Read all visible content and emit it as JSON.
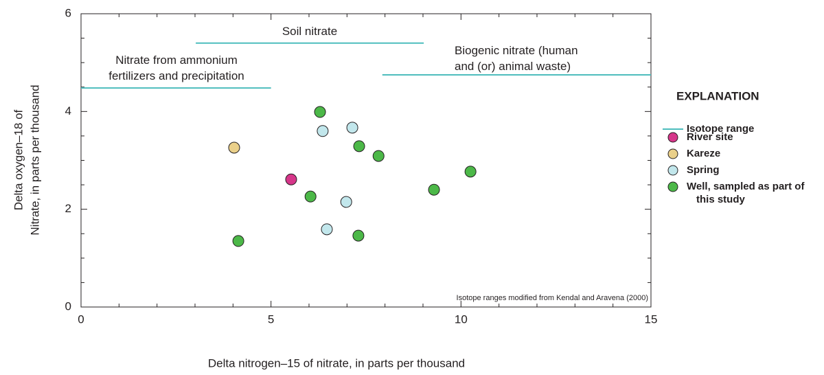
{
  "chart_data": {
    "type": "scatter",
    "xlabel": "Delta nitrogen–15 of nitrate, in parts per thousand",
    "ylabel": [
      "Delta oxygen–18 of",
      "Nitrate, in parts per thousand"
    ],
    "xlim": [
      0,
      15
    ],
    "xticks": [
      0,
      5,
      10,
      15
    ],
    "ylim": [
      0,
      6
    ],
    "yticks": [
      0,
      2,
      4,
      6
    ],
    "note": "Isotope ranges modified from Kendal and Aravena (2000)",
    "legend_title": "EXPLANATION",
    "isotope_ranges": {
      "name": "Isotope range",
      "color": "#4dbdbd",
      "segments": [
        {
          "label": [
            "Nitrate from ammonium",
            "fertilizers and precipitation"
          ],
          "x": [
            0,
            5
          ],
          "y": 4.48
        },
        {
          "label": [
            "Soil nitrate"
          ],
          "x": [
            3.02,
            9.02
          ],
          "y": 5.4
        },
        {
          "label": [
            "Biogenic nitrate (human",
            "and (or) animal waste)"
          ],
          "x": [
            7.93,
            15
          ],
          "y": 4.75
        }
      ]
    },
    "series": [
      {
        "name": "River site",
        "color": "#d6368a",
        "x": [
          5.53
        ],
        "values": [
          2.61
        ]
      },
      {
        "name": "Kareze",
        "color": "#ead08a",
        "x": [
          4.03
        ],
        "values": [
          3.26
        ]
      },
      {
        "name": "Spring",
        "color": "#c2e7ec",
        "x": [
          6.36,
          7.14,
          6.98,
          6.47
        ],
        "values": [
          3.6,
          3.67,
          2.15,
          1.59
        ]
      },
      {
        "name": "Well, sampled as part of this study",
        "color": "#4cb848",
        "x": [
          6.29,
          7.32,
          7.83,
          6.04,
          9.29,
          10.25,
          4.14,
          7.3
        ],
        "values": [
          3.99,
          3.29,
          3.09,
          2.26,
          2.4,
          2.77,
          1.35,
          1.46
        ]
      }
    ]
  }
}
